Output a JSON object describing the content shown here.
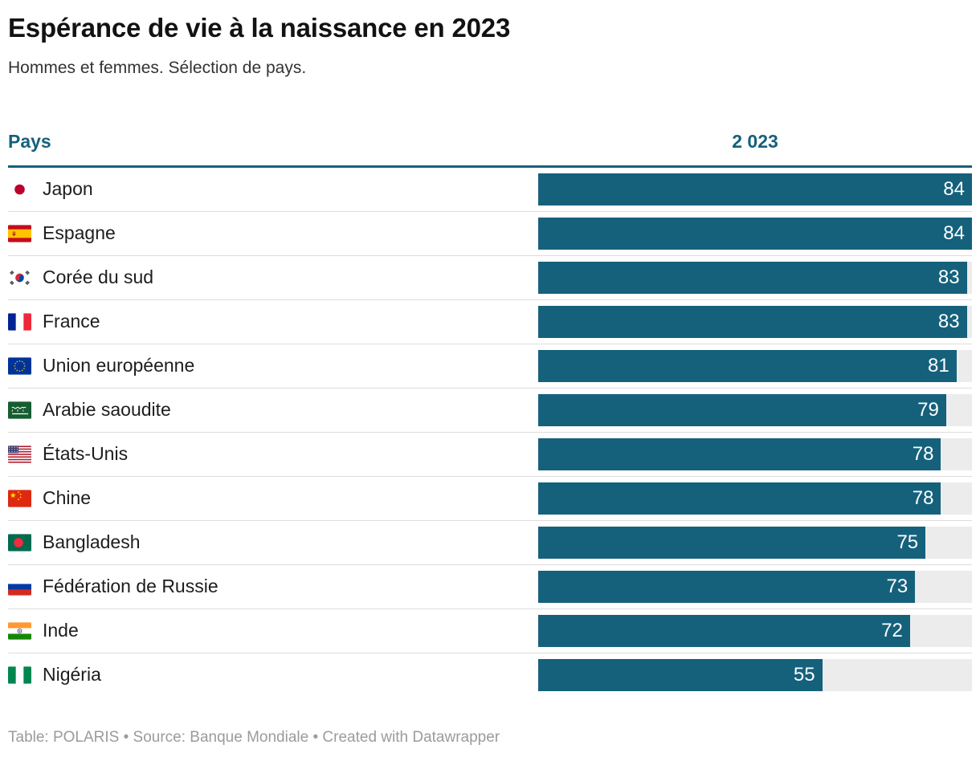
{
  "header": {
    "title": "Espérance de vie à la naissance en 2023",
    "subtitle": "Hommes et femmes. Sélection de pays."
  },
  "table": {
    "country_header": "Pays",
    "value_header": "2 023"
  },
  "rows": [
    {
      "country": "Japon",
      "flag": "flag-japan",
      "value": 84,
      "value_label": "84"
    },
    {
      "country": "Espagne",
      "flag": "flag-spain",
      "value": 84,
      "value_label": "84"
    },
    {
      "country": "Corée du sud",
      "flag": "flag-south-korea",
      "value": 83,
      "value_label": "83"
    },
    {
      "country": "France",
      "flag": "flag-france",
      "value": 83,
      "value_label": "83"
    },
    {
      "country": "Union européenne",
      "flag": "flag-eu",
      "value": 81,
      "value_label": "81"
    },
    {
      "country": "Arabie saoudite",
      "flag": "flag-saudi-arabia",
      "value": 79,
      "value_label": "79"
    },
    {
      "country": "États-Unis",
      "flag": "flag-usa",
      "value": 78,
      "value_label": "78"
    },
    {
      "country": "Chine",
      "flag": "flag-china",
      "value": 78,
      "value_label": "78"
    },
    {
      "country": "Bangladesh",
      "flag": "flag-bangladesh",
      "value": 75,
      "value_label": "75"
    },
    {
      "country": "Fédération de Russie",
      "flag": "flag-russia",
      "value": 73,
      "value_label": "73"
    },
    {
      "country": "Inde",
      "flag": "flag-india",
      "value": 72,
      "value_label": "72"
    },
    {
      "country": "Nigéria",
      "flag": "flag-nigeria",
      "value": 55,
      "value_label": "55"
    }
  ],
  "footer": {
    "credits": "Table: POLARIS • Source: Banque Mondiale • Created with Datawrapper"
  },
  "colors": {
    "bar": "#15617c",
    "accent": "#15617c",
    "track": "#ececec",
    "separator": "#dddddd",
    "title": "#121212",
    "subtitle": "#333333",
    "label": "#1d1d1d",
    "value_text": "#ffffff",
    "footer": "#9b9b9b"
  },
  "chart_data": {
    "type": "bar",
    "orientation": "horizontal",
    "title": "Espérance de vie à la naissance en 2023",
    "subtitle": "Hommes et femmes. Sélection de pays.",
    "column_headers": [
      "Pays",
      "2 023"
    ],
    "categories": [
      "Japon",
      "Espagne",
      "Corée du sud",
      "France",
      "Union européenne",
      "Arabie saoudite",
      "États-Unis",
      "Chine",
      "Bangladesh",
      "Fédération de Russie",
      "Inde",
      "Nigéria"
    ],
    "values": [
      84,
      84,
      83,
      83,
      81,
      79,
      78,
      78,
      75,
      73,
      72,
      55
    ],
    "xlabel": "",
    "ylabel": "",
    "value_axis_range": [
      0,
      84
    ],
    "grid": false,
    "legend": false,
    "value_labels": "inside-end"
  }
}
